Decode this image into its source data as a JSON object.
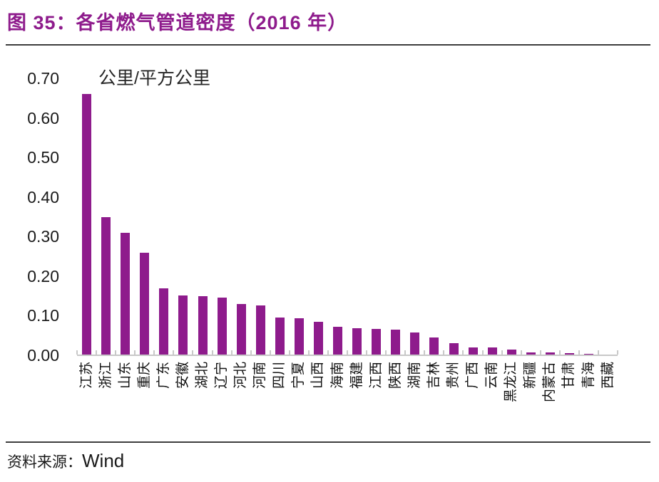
{
  "header": {
    "title": "图 35：各省燃气管道密度（2016 年）"
  },
  "footer": {
    "source_label": "资料来源：",
    "source_value": "Wind"
  },
  "colors": {
    "accent": "#8E1B8C",
    "axis": "#c8c8c8",
    "rule": "#3d3d3d",
    "text": "#1a1a1a"
  },
  "chart_data": {
    "type": "bar",
    "title": "各省燃气管道密度（2016 年）",
    "unit_label": "公里/平方公里",
    "xlabel": "",
    "ylabel": "公里/平方公里",
    "ylim": [
      0,
      0.7
    ],
    "ytick_labels": [
      "0.00",
      "0.10",
      "0.20",
      "0.30",
      "0.40",
      "0.50",
      "0.60",
      "0.70"
    ],
    "grid": false,
    "legend": "none",
    "categories": [
      "江苏",
      "浙江",
      "山东",
      "重庆",
      "广东",
      "安徽",
      "湖北",
      "辽宁",
      "河北",
      "河南",
      "四川",
      "宁夏",
      "山西",
      "海南",
      "福建",
      "江西",
      "陕西",
      "湖南",
      "吉林",
      "贵州",
      "广西",
      "云南",
      "黑龙江",
      "新疆",
      "内蒙古",
      "甘肃",
      "青海",
      "西藏"
    ],
    "values": [
      0.66,
      0.35,
      0.31,
      0.26,
      0.17,
      0.152,
      0.149,
      0.146,
      0.13,
      0.126,
      0.095,
      0.094,
      0.084,
      0.072,
      0.069,
      0.066,
      0.064,
      0.058,
      0.045,
      0.03,
      0.02,
      0.019,
      0.015,
      0.007,
      0.007,
      0.005,
      0.004,
      0.001
    ]
  }
}
